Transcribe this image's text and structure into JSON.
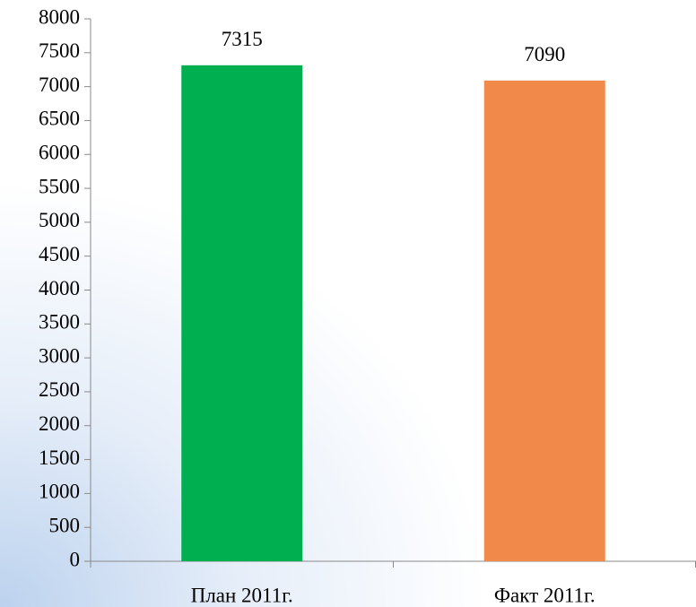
{
  "chart_data": {
    "type": "bar",
    "categories": [
      "План 2011г.",
      "Факт 2011г."
    ],
    "values": [
      7315,
      7090
    ],
    "colors": [
      "#00b050",
      "#f0894a"
    ],
    "ylim": [
      0,
      8000
    ],
    "yticks": [
      0,
      500,
      1000,
      1500,
      2000,
      2500,
      3000,
      3500,
      4000,
      4500,
      5000,
      5500,
      6000,
      6500,
      7000,
      7500,
      8000
    ],
    "grid": false
  }
}
